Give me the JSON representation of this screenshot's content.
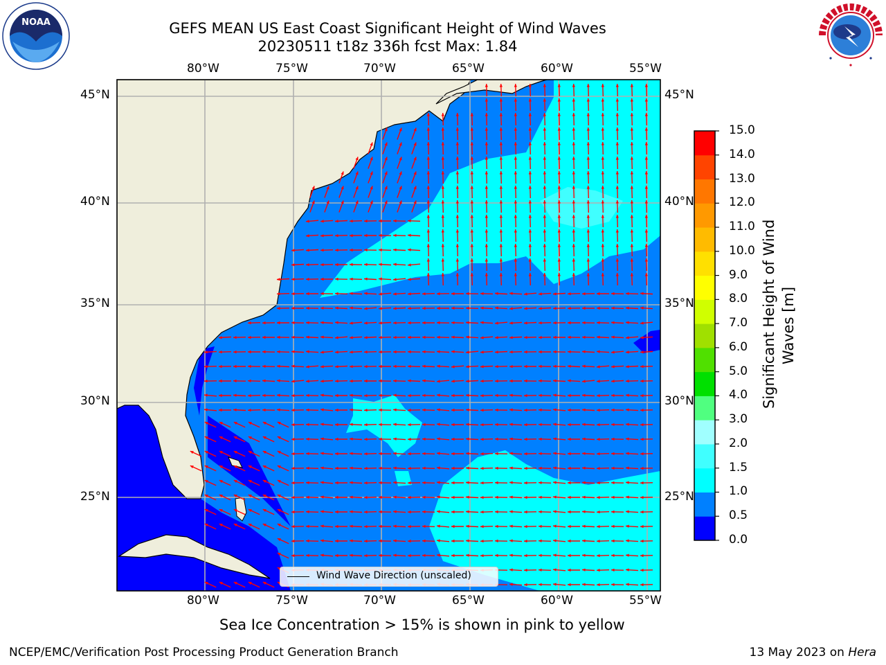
{
  "title": {
    "line1": "GEFS MEAN US East Coast Significant Height of Wind Waves",
    "line2": "20230511 t18z 336h fcst   Max: 1.84"
  },
  "logos": {
    "noaa_text": "NOAA",
    "noaa_ring": "NATIONAL OCEANIC AND ATMOSPHERIC ADMINISTRATION · U.S. DEPARTMENT OF COMMERCE",
    "nws_ring": "NATIONAL WEATHER SERVICE"
  },
  "map": {
    "lon_ticks": [
      "80°W",
      "75°W",
      "70°W",
      "65°W",
      "60°W",
      "55°W"
    ],
    "lat_ticks": [
      "45°N",
      "40°N",
      "35°N",
      "30°N",
      "25°N"
    ],
    "lon_range": [
      -85,
      -54.3
    ],
    "lat_range": [
      20.3,
      46
    ],
    "grid": true,
    "projection": "PlateCarree",
    "colors": {
      "land": "#efeedc",
      "ocean_low": "#0000ff",
      "ocean_mid": "#0080ff",
      "ocean_high": "#00ffff",
      "arrow": "#ff0000",
      "grid": "#b0b0b0"
    },
    "legend": {
      "label": "Wind Wave Direction (unscaled)"
    }
  },
  "colorbar": {
    "title": "Significant Height of Wind Waves [m]",
    "title_lines": [
      "Significant Height of Wind",
      "Waves [m]"
    ],
    "levels": [
      "0.0",
      "0.5",
      "1.0",
      "1.5",
      "2.0",
      "3.0",
      "4.0",
      "5.0",
      "6.0",
      "7.0",
      "8.0",
      "9.0",
      "10.0",
      "11.0",
      "12.0",
      "13.0",
      "14.0",
      "15.0"
    ],
    "colors": [
      "#0000ff",
      "#0080ff",
      "#00ffff",
      "#40ffff",
      "#a0ffff",
      "#50ff80",
      "#00e000",
      "#50e000",
      "#a0e000",
      "#d0ff00",
      "#ffff00",
      "#ffe000",
      "#ffbb00",
      "#ff9900",
      "#ff7700",
      "#ff4400",
      "#ff0000"
    ]
  },
  "note": "Sea Ice Concentration > 15% is shown in pink to yellow",
  "footer": {
    "left": "NCEP/EMC/Verification Post Processing Product Generation Branch",
    "right_date": "13 May 2023 on ",
    "right_host": "Hera"
  }
}
